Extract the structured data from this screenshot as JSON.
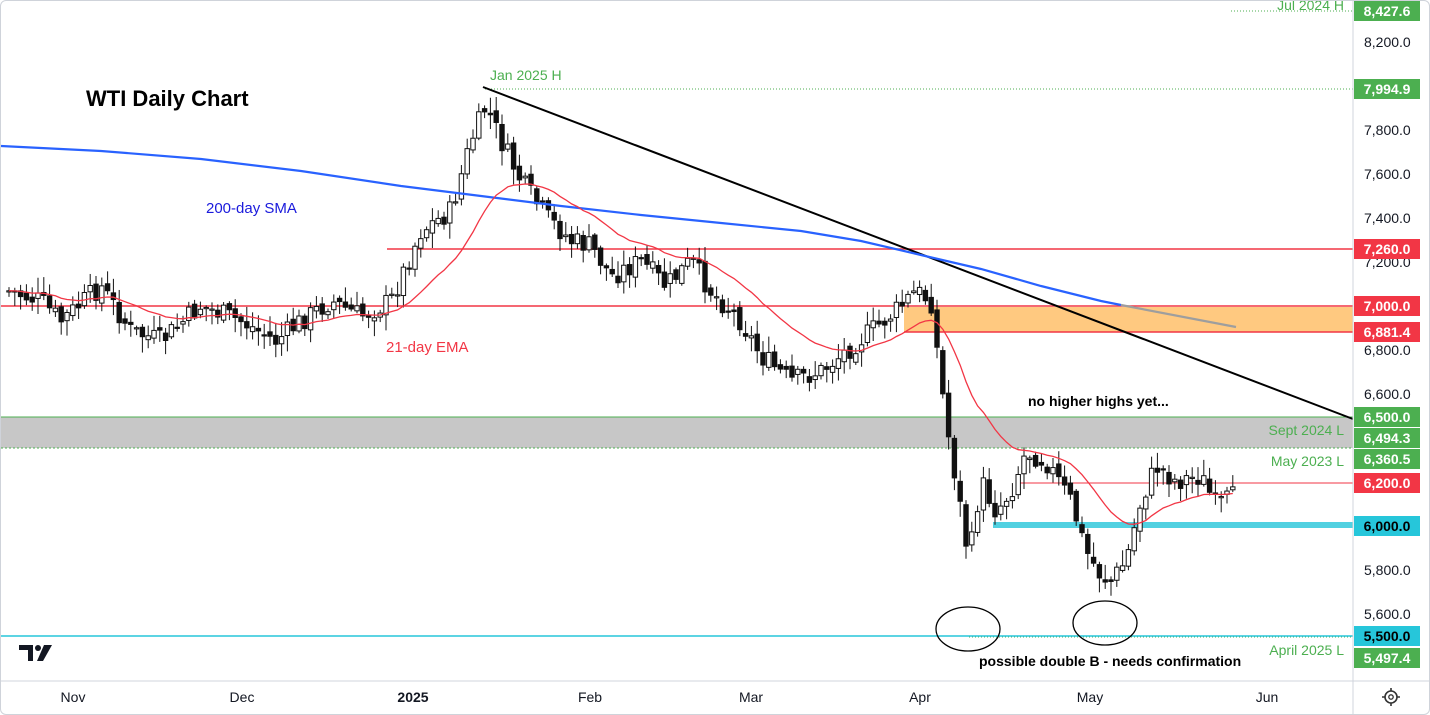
{
  "chart_data": {
    "type": "candlestick",
    "title": "WTI Daily Chart",
    "ylim": [
      5300,
      8460
    ],
    "x_labels": [
      "Nov",
      "Dec",
      "2025",
      "Feb",
      "Mar",
      "Apr",
      "May",
      "Jun"
    ],
    "y_ticks": [
      "8,200.0",
      "7,800.0",
      "7,600.0",
      "7,400.0",
      "7,200.0",
      "6,800.0",
      "6,600.0",
      "5,800.0",
      "5,600.0"
    ],
    "price_labels": [
      {
        "value": 8427.6,
        "label": "8,427.6",
        "color": "#4caf50"
      },
      {
        "value": 7994.9,
        "label": "7,994.9",
        "color": "#4caf50"
      },
      {
        "value": 7260.0,
        "label": "7,260.0",
        "color": "#f23645"
      },
      {
        "value": 7000.0,
        "label": "7,000.0",
        "color": "#f23645"
      },
      {
        "value": 6881.4,
        "label": "6,881.4",
        "color": "#f23645"
      },
      {
        "value": 6500.0,
        "label": "6,500.0",
        "color": "#4caf50"
      },
      {
        "value": 6494.3,
        "label": "6,494.3",
        "color": "#4caf50"
      },
      {
        "value": 6360.5,
        "label": "6,360.5",
        "color": "#4caf50"
      },
      {
        "value": 6200.0,
        "label": "6,200.0",
        "color": "#f23645"
      },
      {
        "value": 6000.0,
        "label": "6,000.0",
        "color": "#26c6da"
      },
      {
        "value": 5500.0,
        "label": "5,500.0",
        "color": "#26c6da"
      },
      {
        "value": 5497.4,
        "label": "5,497.4",
        "color": "#4caf50"
      }
    ],
    "levels": [
      {
        "label": "Jul 2024 H",
        "value": 8427.6
      },
      {
        "label": "Jan 2025 H",
        "value": 7994.9
      },
      {
        "label": "Sept 2024 L",
        "value": 6494.3
      },
      {
        "label": "May 2023 L",
        "value": 6360.5
      },
      {
        "label": "April 2025 L",
        "value": 5497.4
      }
    ],
    "series_names": [
      "200-day SMA",
      "21-day EMA"
    ],
    "annotations": [
      "no higher highs yet...",
      "possible double B - needs confirmation"
    ]
  },
  "colors": {
    "up": "#ffffff",
    "down": "#111111",
    "sma": "#2962ff",
    "ema": "#f23645",
    "support": "#26c6da",
    "green": "#4caf50",
    "red": "#f23645"
  }
}
